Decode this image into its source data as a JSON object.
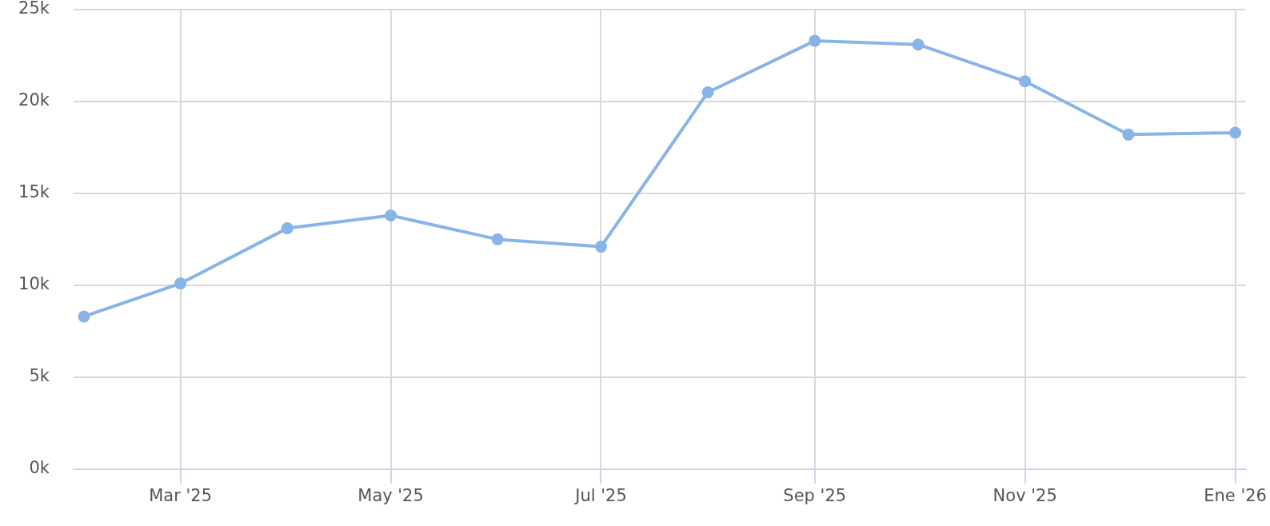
{
  "chart_data": {
    "type": "line",
    "x": [
      "2025-02",
      "2025-03",
      "2025-04",
      "2025-05",
      "2025-06",
      "2025-07",
      "2025-08",
      "2025-09",
      "2025-10",
      "2025-11",
      "2025-12",
      "2026-01"
    ],
    "series": [
      {
        "color": "#89b4e8",
        "values": [
          8300,
          10100,
          13100,
          13800,
          12500,
          12100,
          20500,
          23300,
          23100,
          21100,
          18200,
          18300
        ]
      }
    ],
    "xlim": [
      "2025-01-29",
      "2026-01-04"
    ],
    "xticks": [
      {
        "value": "2025-03",
        "label": "Mar '25"
      },
      {
        "value": "2025-05",
        "label": "May '25"
      },
      {
        "value": "2025-07",
        "label": "Jul '25"
      },
      {
        "value": "2025-09",
        "label": "Sep '25"
      },
      {
        "value": "2025-11",
        "label": "Nov '25"
      },
      {
        "value": "2026-01",
        "label": "Ene '26"
      }
    ],
    "ylim": [
      0,
      25000
    ],
    "yticks": [
      {
        "value": 0,
        "label": "0k"
      },
      {
        "value": 5000,
        "label": "5k"
      },
      {
        "value": 10000,
        "label": "10k"
      },
      {
        "value": 15000,
        "label": "15k"
      },
      {
        "value": 20000,
        "label": "20k"
      },
      {
        "value": 25000,
        "label": "25k"
      }
    ],
    "grid": true,
    "marker": "circle",
    "line_style": "solid"
  }
}
